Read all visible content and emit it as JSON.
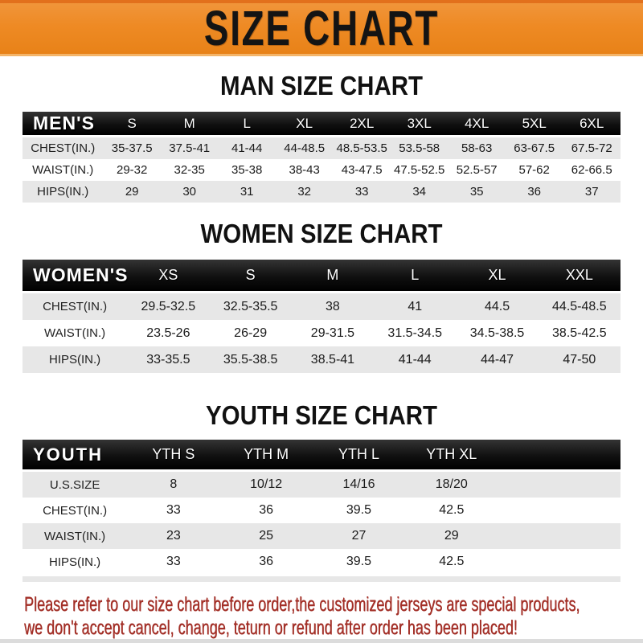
{
  "banner": {
    "title": "SIZE CHART"
  },
  "colors": {
    "banner_orange": "#EE8A24",
    "table_header_black": "#141414",
    "row_gray": "#E7E7E7",
    "disclaimer_red": "#A33028"
  },
  "chart_data": [
    {
      "type": "table",
      "title": "MAN SIZE CHART",
      "corner_label": "MEN'S",
      "columns": [
        "S",
        "M",
        "L",
        "XL",
        "2XL",
        "3XL",
        "4XL",
        "5XL",
        "6XL"
      ],
      "rows": [
        {
          "label": "CHEST(IN.)",
          "values": [
            "35-37.5",
            "37.5-41",
            "41-44",
            "44-48.5",
            "48.5-53.5",
            "53.5-58",
            "58-63",
            "63-67.5",
            "67.5-72"
          ]
        },
        {
          "label": "WAIST(IN.)",
          "values": [
            "29-32",
            "32-35",
            "35-38",
            "38-43",
            "43-47.5",
            "47.5-52.5",
            "52.5-57",
            "57-62",
            "62-66.5"
          ]
        },
        {
          "label": "HIPS(IN.)",
          "values": [
            "29",
            "30",
            "31",
            "32",
            "33",
            "34",
            "35",
            "36",
            "37"
          ]
        }
      ]
    },
    {
      "type": "table",
      "title": "WOMEN SIZE CHART",
      "corner_label": "WOMEN'S",
      "columns": [
        "XS",
        "S",
        "M",
        "L",
        "XL",
        "XXL"
      ],
      "rows": [
        {
          "label": "CHEST(IN.)",
          "values": [
            "29.5-32.5",
            "32.5-35.5",
            "38",
            "41",
            "44.5",
            "44.5-48.5"
          ]
        },
        {
          "label": "WAIST(IN.)",
          "values": [
            "23.5-26",
            "26-29",
            "29-31.5",
            "31.5-34.5",
            "34.5-38.5",
            "38.5-42.5"
          ]
        },
        {
          "label": "HIPS(IN.)",
          "values": [
            "33-35.5",
            "35.5-38.5",
            "38.5-41",
            "41-44",
            "44-47",
            "47-50"
          ]
        }
      ]
    },
    {
      "type": "table",
      "title": "YOUTH SIZE CHART",
      "corner_label": "YOUTH",
      "columns": [
        "YTH S",
        "YTH M",
        "YTH L",
        "YTH XL"
      ],
      "rows": [
        {
          "label": "U.S.SIZE",
          "values": [
            "8",
            "10/12",
            "14/16",
            "18/20"
          ]
        },
        {
          "label": "CHEST(IN.)",
          "values": [
            "33",
            "36",
            "39.5",
            "42.5"
          ]
        },
        {
          "label": "WAIST(IN.)",
          "values": [
            "23",
            "25",
            "27",
            "29"
          ]
        },
        {
          "label": "HIPS(IN.)",
          "values": [
            "33",
            "36",
            "39.5",
            "42.5"
          ]
        }
      ]
    }
  ],
  "disclaimer": {
    "line1": "Please refer to our size chart before order,the customized jerseys are special products,",
    "line2": "we don't accept cancel, change, teturn or refund after order has been placed!"
  }
}
